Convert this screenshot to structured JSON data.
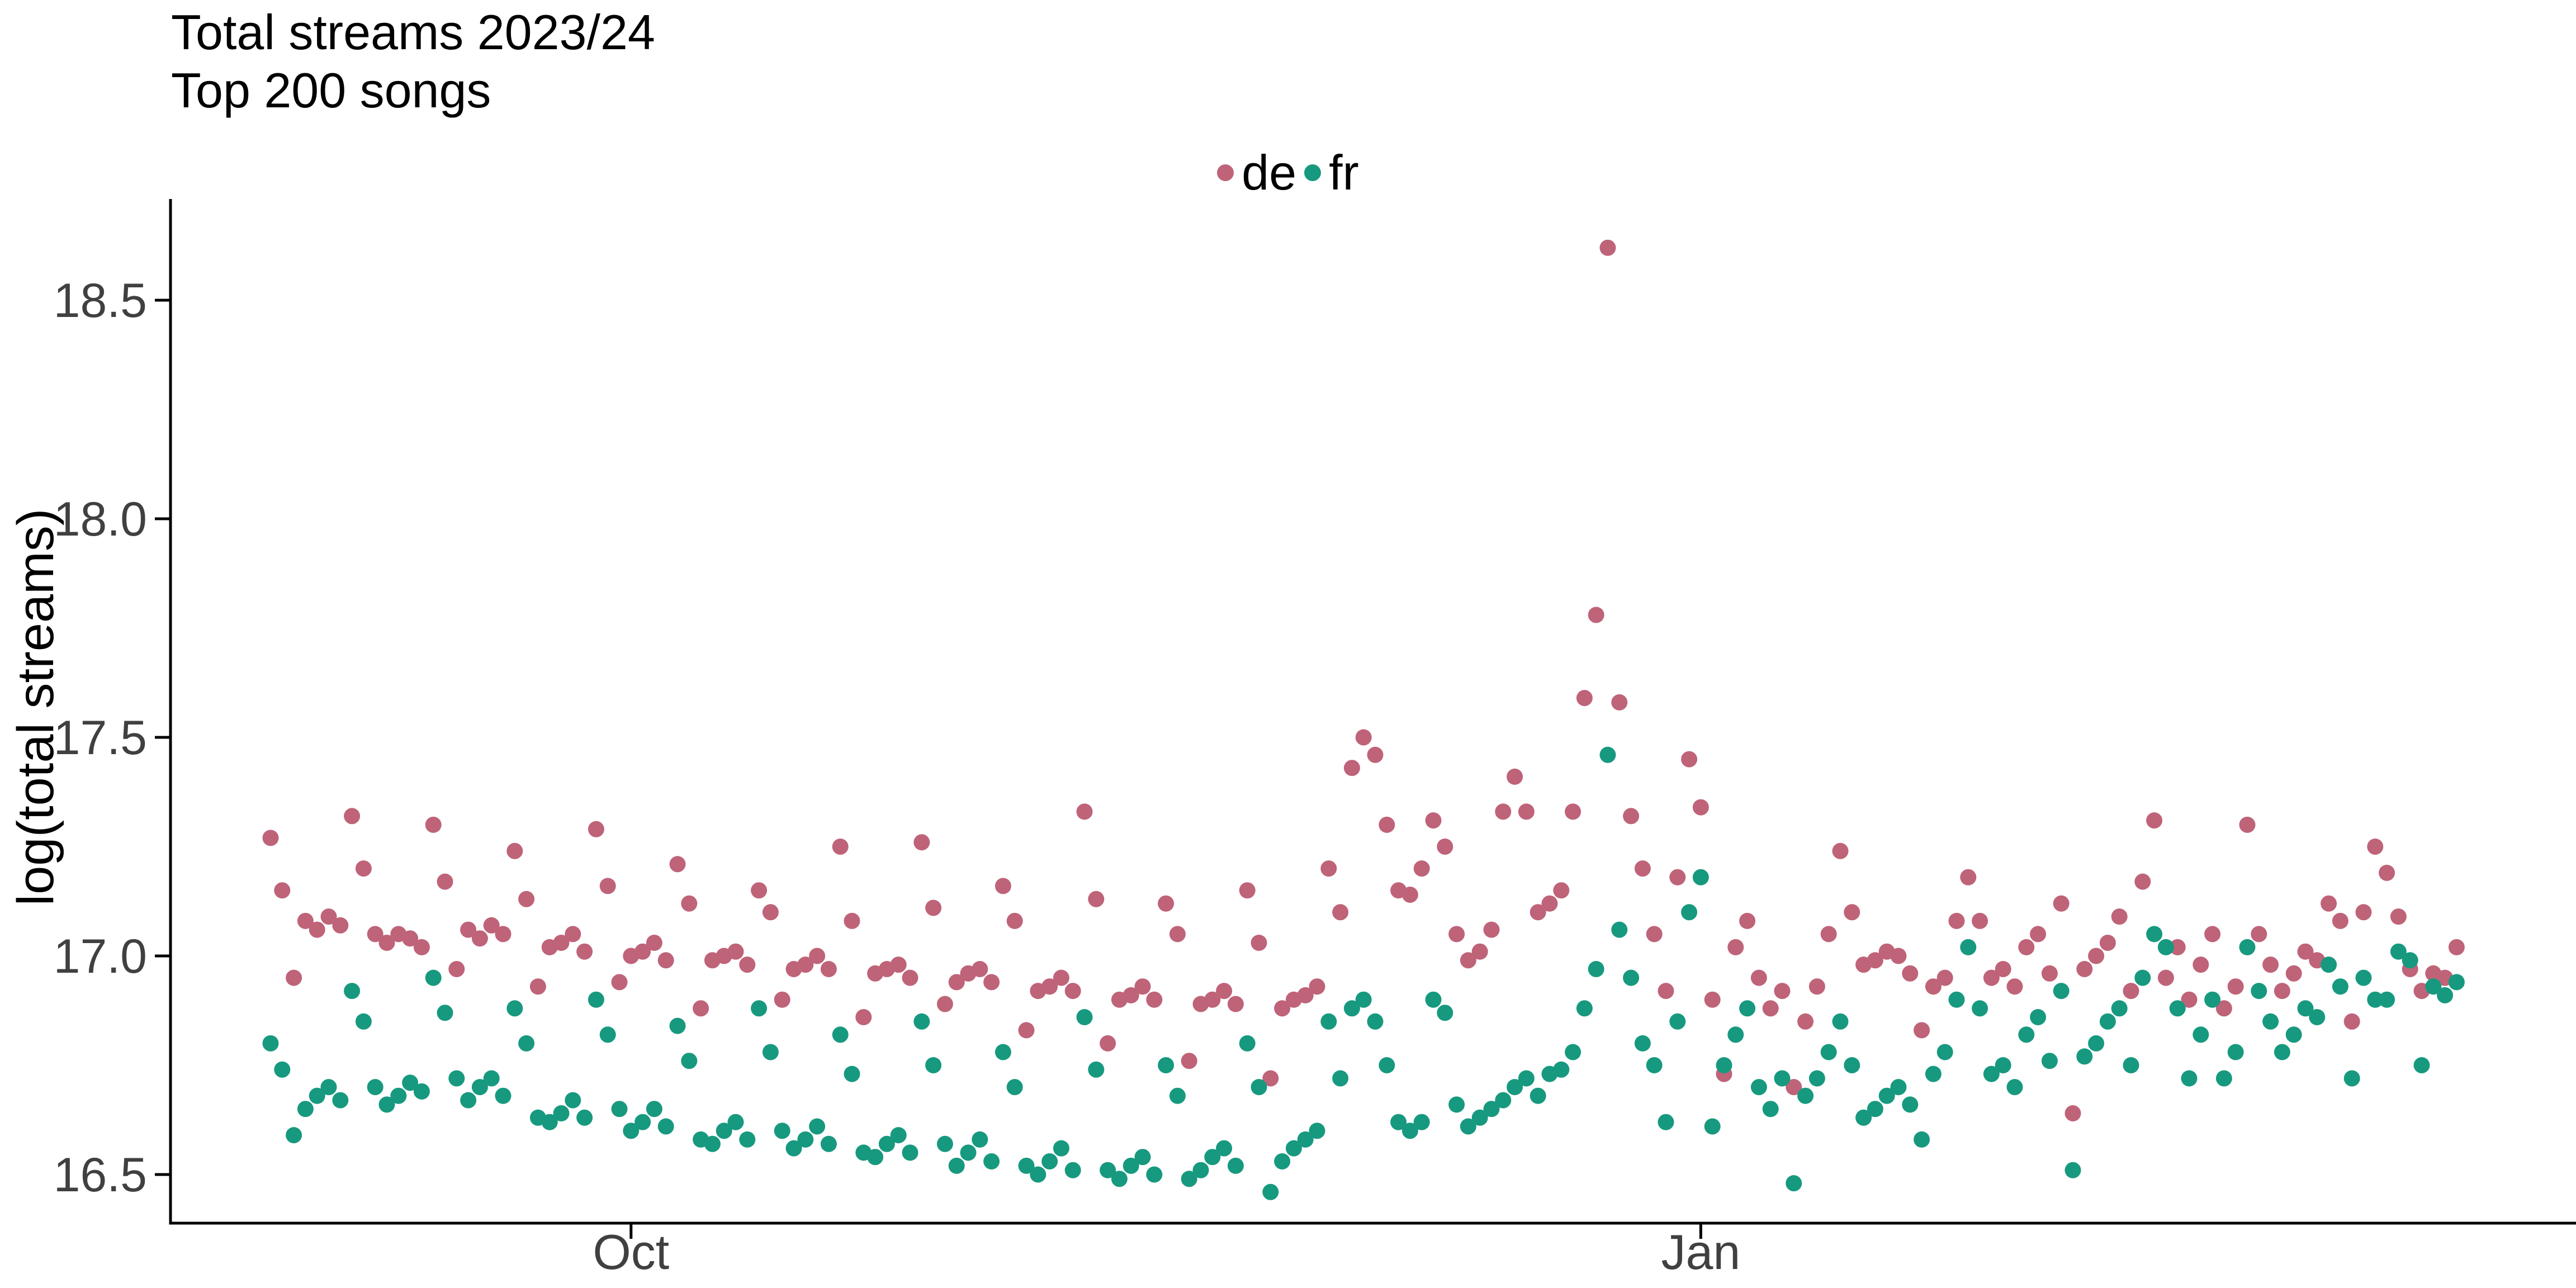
{
  "chart_data": {
    "type": "scatter",
    "title": "Total streams 2023/24",
    "subtitle": "Top 200 songs",
    "ylabel": "log(total streams)",
    "xlabel": "",
    "grid": false,
    "legend_position": "top-center",
    "y_ticks": [
      16.5,
      17.0,
      17.5,
      18.0,
      18.5
    ],
    "ylim": [
      16.39,
      18.73
    ],
    "x_ticks": [
      {
        "label": "Oct",
        "day_index": 31
      },
      {
        "label": "Jan",
        "day_index": 123
      }
    ],
    "x_description": "daily points, day_index 0 = late Aug 2023 through early Mar 2024",
    "point_color_de": "#bf6379",
    "point_color_fr": "#17997f",
    "series": [
      {
        "name": "de",
        "color": "#bf6379",
        "values": [
          17.27,
          17.15,
          16.95,
          17.08,
          17.06,
          17.09,
          17.07,
          17.32,
          17.2,
          17.05,
          17.03,
          17.05,
          17.04,
          17.02,
          17.3,
          17.17,
          16.97,
          17.06,
          17.04,
          17.07,
          17.05,
          17.24,
          17.13,
          16.93,
          17.02,
          17.03,
          17.05,
          17.01,
          17.29,
          17.16,
          16.94,
          17.0,
          17.01,
          17.03,
          16.99,
          17.21,
          17.12,
          16.88,
          16.99,
          17.0,
          17.01,
          16.98,
          17.15,
          17.1,
          16.9,
          16.97,
          16.98,
          17.0,
          16.97,
          17.25,
          17.08,
          16.86,
          16.96,
          16.97,
          16.98,
          16.95,
          17.26,
          17.11,
          16.89,
          16.94,
          16.96,
          16.97,
          16.94,
          17.16,
          17.08,
          16.83,
          16.92,
          16.93,
          16.95,
          16.92,
          17.33,
          17.13,
          16.8,
          16.9,
          16.91,
          16.93,
          16.9,
          17.12,
          17.05,
          16.76,
          16.89,
          16.9,
          16.92,
          16.89,
          17.15,
          17.03,
          16.72,
          16.88,
          16.9,
          16.91,
          16.93,
          17.2,
          17.1,
          17.43,
          17.5,
          17.46,
          17.3,
          17.15,
          17.14,
          17.2,
          17.31,
          17.25,
          17.05,
          16.99,
          17.01,
          17.06,
          17.33,
          17.41,
          17.33,
          17.1,
          17.12,
          17.15,
          17.33,
          17.59,
          17.78,
          18.62,
          17.58,
          17.32,
          17.2,
          17.05,
          16.92,
          17.18,
          17.45,
          17.34,
          16.9,
          16.73,
          17.02,
          17.08,
          16.95,
          16.88,
          16.92,
          16.7,
          16.85,
          16.93,
          17.05,
          17.24,
          17.1,
          16.98,
          16.99,
          17.01,
          17.0,
          16.96,
          16.83,
          16.93,
          16.95,
          17.08,
          17.18,
          17.08,
          16.95,
          16.97,
          16.93,
          17.02,
          17.05,
          16.96,
          17.12,
          16.64,
          16.97,
          17.0,
          17.03,
          17.09,
          16.92,
          17.17,
          17.31,
          16.95,
          17.02,
          16.9,
          16.98,
          17.05,
          16.88,
          16.93,
          17.3,
          17.05,
          16.98,
          16.92,
          16.96,
          17.01,
          16.99,
          17.12,
          17.08,
          16.85,
          17.1,
          17.25,
          17.19,
          17.09,
          16.97,
          16.92,
          16.96,
          16.95,
          17.02
        ]
      },
      {
        "name": "fr",
        "color": "#17997f",
        "values": [
          16.8,
          16.74,
          16.59,
          16.65,
          16.68,
          16.7,
          16.67,
          16.92,
          16.85,
          16.7,
          16.66,
          16.68,
          16.71,
          16.69,
          16.95,
          16.87,
          16.72,
          16.67,
          16.7,
          16.72,
          16.68,
          16.88,
          16.8,
          16.63,
          16.62,
          16.64,
          16.67,
          16.63,
          16.9,
          16.82,
          16.65,
          16.6,
          16.62,
          16.65,
          16.61,
          16.84,
          16.76,
          16.58,
          16.57,
          16.6,
          16.62,
          16.58,
          16.88,
          16.78,
          16.6,
          16.56,
          16.58,
          16.61,
          16.57,
          16.82,
          16.73,
          16.55,
          16.54,
          16.57,
          16.59,
          16.55,
          16.85,
          16.75,
          16.57,
          16.52,
          16.55,
          16.58,
          16.53,
          16.78,
          16.7,
          16.52,
          16.5,
          16.53,
          16.56,
          16.51,
          16.86,
          16.74,
          16.51,
          16.49,
          16.52,
          16.54,
          16.5,
          16.75,
          16.68,
          16.49,
          16.51,
          16.54,
          16.56,
          16.52,
          16.8,
          16.7,
          16.46,
          16.53,
          16.56,
          16.58,
          16.6,
          16.85,
          16.72,
          16.88,
          16.9,
          16.85,
          16.75,
          16.62,
          16.6,
          16.62,
          16.9,
          16.87,
          16.66,
          16.61,
          16.63,
          16.65,
          16.67,
          16.7,
          16.72,
          16.68,
          16.73,
          16.74,
          16.78,
          16.88,
          16.97,
          17.46,
          17.06,
          16.95,
          16.8,
          16.75,
          16.62,
          16.85,
          17.1,
          17.18,
          16.61,
          16.75,
          16.82,
          16.88,
          16.7,
          16.65,
          16.72,
          16.48,
          16.68,
          16.72,
          16.78,
          16.85,
          16.75,
          16.63,
          16.65,
          16.68,
          16.7,
          16.66,
          16.58,
          16.73,
          16.78,
          16.9,
          17.02,
          16.88,
          16.73,
          16.75,
          16.7,
          16.82,
          16.86,
          16.76,
          16.92,
          16.51,
          16.77,
          16.8,
          16.85,
          16.88,
          16.75,
          16.95,
          17.05,
          17.02,
          16.88,
          16.72,
          16.82,
          16.9,
          16.72,
          16.78,
          17.02,
          16.92,
          16.85,
          16.78,
          16.82,
          16.88,
          16.86,
          16.98,
          16.93,
          16.72,
          16.95,
          16.9,
          16.9,
          17.01,
          16.99,
          16.75,
          16.93,
          16.91,
          16.94
        ]
      }
    ]
  },
  "style": {
    "axis_color": "#000000",
    "tick_label_color": "#404040",
    "background": "#ffffff"
  }
}
